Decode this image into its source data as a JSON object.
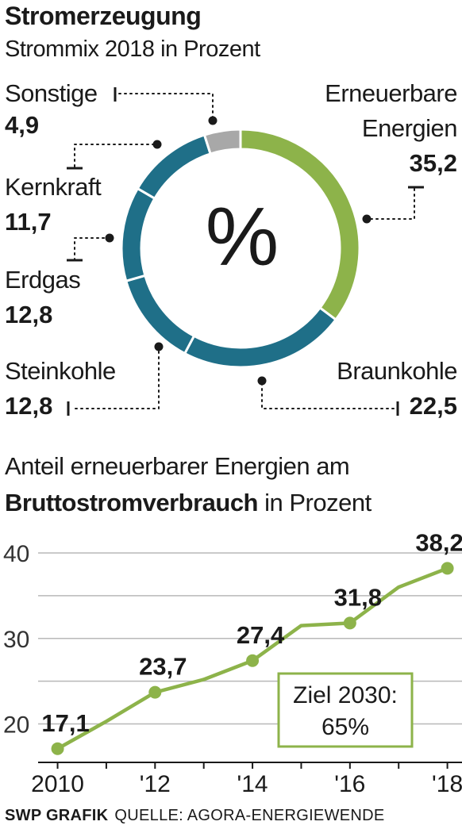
{
  "header": {
    "title": "Stromerzeugung",
    "subtitle": "Strommix 2018 in Prozent"
  },
  "chart_data": [
    {
      "type": "pie",
      "center_label": "%",
      "slices": [
        {
          "label": "Erneuerbare Energien",
          "label_lines": [
            "Erneuerbare",
            "Energien"
          ],
          "value": 35.2,
          "value_text": "35,2",
          "color": "#8db34a"
        },
        {
          "label": "Braunkohle",
          "label_lines": [
            "Braunkohle"
          ],
          "value": 22.5,
          "value_text": "22,5",
          "color": "#1f6f88"
        },
        {
          "label": "Steinkohle",
          "label_lines": [
            "Steinkohle"
          ],
          "value": 12.8,
          "value_text": "12,8",
          "color": "#1f6f88"
        },
        {
          "label": "Erdgas",
          "label_lines": [
            "Erdgas"
          ],
          "value": 12.8,
          "value_text": "12,8",
          "color": "#1f6f88"
        },
        {
          "label": "Kernkraft",
          "label_lines": [
            "Kernkraft"
          ],
          "value": 11.7,
          "value_text": "11,7",
          "color": "#1f6f88"
        },
        {
          "label": "Sonstige",
          "label_lines": [
            "Sonstige"
          ],
          "value": 4.9,
          "value_text": "4,9",
          "color": "#a8a8a8"
        }
      ]
    },
    {
      "type": "line",
      "title": "Anteil erneuerbarer Energien am",
      "subtitle_bold": "Bruttostromverbrauch",
      "subtitle_rest": " in Prozent",
      "x": [
        2010,
        2011,
        2012,
        2013,
        2014,
        2015,
        2016,
        2017,
        2018
      ],
      "y": [
        17.1,
        20.3,
        23.7,
        25.2,
        27.4,
        31.5,
        31.8,
        36.0,
        38.2
      ],
      "labeled_points": [
        {
          "x": 2010,
          "y": 17.1,
          "text": "17,1"
        },
        {
          "x": 2012,
          "y": 23.7,
          "text": "23,7"
        },
        {
          "x": 2014,
          "y": 27.4,
          "text": "27,4"
        },
        {
          "x": 2016,
          "y": 31.8,
          "text": "31,8"
        },
        {
          "x": 2018,
          "y": 38.2,
          "text": "38,2"
        }
      ],
      "xticks": [
        {
          "x": 2010,
          "label": "2010"
        },
        {
          "x": 2012,
          "label": "'12"
        },
        {
          "x": 2014,
          "label": "'14"
        },
        {
          "x": 2016,
          "label": "'16"
        },
        {
          "x": 2018,
          "label": "'18"
        }
      ],
      "yticks": [
        20,
        30,
        40
      ],
      "xlim": [
        2009.6,
        2018.3
      ],
      "ylim": [
        15.5,
        40
      ],
      "grid": true,
      "color": "#8db34a",
      "annotation": {
        "lines": [
          "Ziel 2030:",
          "65%"
        ]
      }
    }
  ],
  "footer": {
    "brand": "SWP GRAFIK",
    "source": "QUELLE: AGORA-ENERGIEWENDE"
  }
}
